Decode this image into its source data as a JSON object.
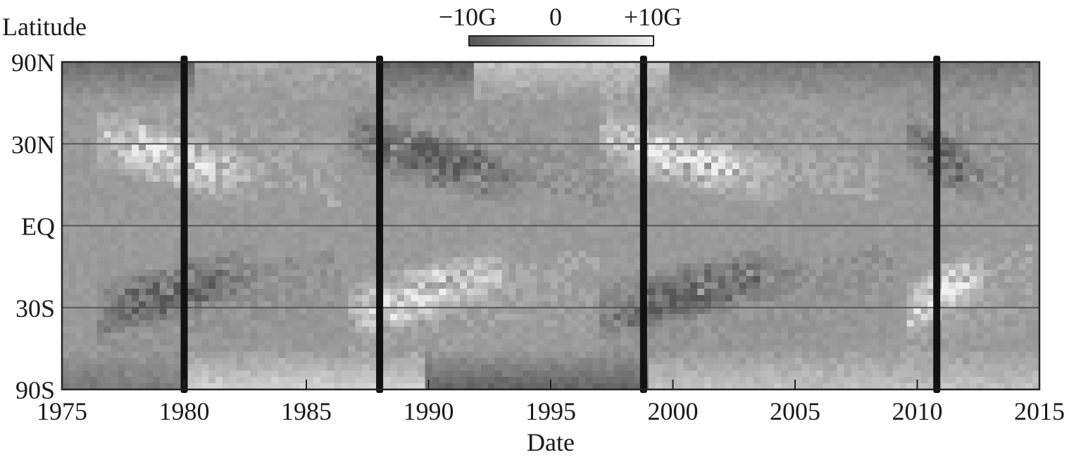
{
  "chart_data": {
    "type": "heatmap",
    "title": "",
    "xlabel": "Date",
    "ylabel": "Latitude",
    "x_range": [
      1975,
      2015
    ],
    "x_ticks": [
      "1975",
      "1980",
      "1985",
      "1990",
      "1995",
      "2000",
      "2005",
      "2010",
      "2015"
    ],
    "y_scale": "sine-latitude",
    "y_ticks": [
      {
        "label": "90N",
        "lat": 90
      },
      {
        "label": "30N",
        "lat": 30
      },
      {
        "label": "EQ",
        "lat": 0
      },
      {
        "label": "30S",
        "lat": -30
      },
      {
        "label": "90S",
        "lat": -90
      }
    ],
    "grid_lines_lat": [
      30,
      0,
      -30
    ],
    "colorbar": {
      "labels": [
        "−10G",
        "0",
        "+10G"
      ],
      "range": [
        -10,
        10
      ],
      "unit": "G",
      "placement": "top-center",
      "colors": [
        "#555555",
        "#9a9a9a",
        "#f0f0f0"
      ]
    },
    "data_gaps_years": [
      1980.0,
      1988.0,
      1998.8,
      2010.8
    ],
    "activity_wings": [
      {
        "hemisphere": "N",
        "start": 1976.5,
        "end": 1986.5,
        "polarity": 1
      },
      {
        "hemisphere": "S",
        "start": 1976.5,
        "end": 1986.5,
        "polarity": -1
      },
      {
        "hemisphere": "N",
        "start": 1986.8,
        "end": 1997.5,
        "polarity": -1
      },
      {
        "hemisphere": "S",
        "start": 1986.8,
        "end": 1997.0,
        "polarity": 1
      },
      {
        "hemisphere": "N",
        "start": 1997.0,
        "end": 2008.5,
        "polarity": 1
      },
      {
        "hemisphere": "S",
        "start": 1997.0,
        "end": 2009.0,
        "polarity": -1
      },
      {
        "hemisphere": "N",
        "start": 2009.5,
        "end": 2014.6,
        "polarity": -1
      },
      {
        "hemisphere": "S",
        "start": 2009.5,
        "end": 2014.6,
        "polarity": 1
      }
    ],
    "polar_fields": [
      {
        "hemisphere": "N",
        "start": 1975,
        "end": 1980.5,
        "value": -4
      },
      {
        "hemisphere": "N",
        "start": 1980.5,
        "end": 1988,
        "value": 1
      },
      {
        "hemisphere": "N",
        "start": 1988,
        "end": 1992,
        "value": -5
      },
      {
        "hemisphere": "N",
        "start": 1992,
        "end": 2000,
        "value": 3
      },
      {
        "hemisphere": "N",
        "start": 2000,
        "end": 2015,
        "value": -3
      },
      {
        "hemisphere": "S",
        "start": 1975,
        "end": 1980,
        "value": -3
      },
      {
        "hemisphere": "S",
        "start": 1980,
        "end": 1990,
        "value": 4
      },
      {
        "hemisphere": "S",
        "start": 1990,
        "end": 1999,
        "value": -5
      },
      {
        "hemisphere": "S",
        "start": 1999,
        "end": 2015,
        "value": 3
      }
    ]
  }
}
